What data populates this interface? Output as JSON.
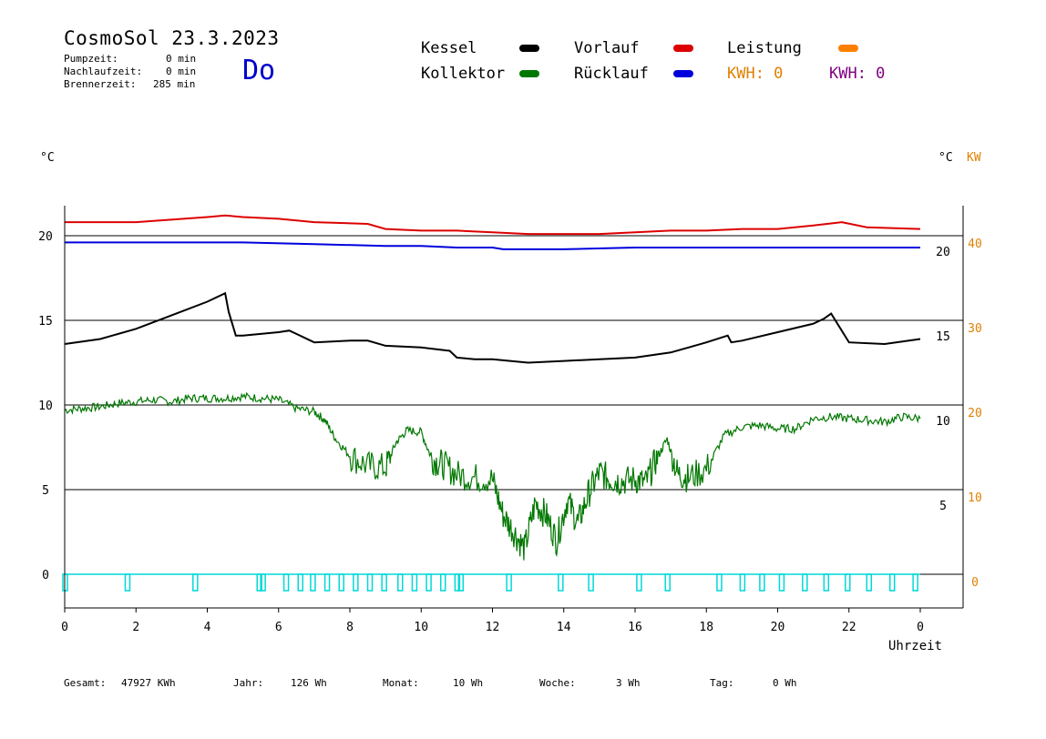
{
  "header": {
    "title": "CosmoSol 23.3.2023",
    "day": "Do",
    "stats": [
      {
        "label": "Pumpzeit:",
        "value": "0 min"
      },
      {
        "label": "Nachlaufzeit:",
        "value": "0 min"
      },
      {
        "label": "Brennerzeit:",
        "value": "285 min"
      }
    ]
  },
  "legend": {
    "kessel": "Kessel",
    "vorlauf": "Vorlauf",
    "leistung": "Leistung",
    "kollektor": "Kollektor",
    "ruecklauf": "Rücklauf",
    "kwh_orange": "KWH: 0",
    "kwh_purple": "KWH: 0"
  },
  "axis_units": {
    "left": "°C",
    "right_c": "°C",
    "right_kw": "KW"
  },
  "footer": {
    "gesamt": {
      "label": "Gesamt:",
      "value": "47927 KWh"
    },
    "jahr": {
      "label": "Jahr:",
      "value": "126 Wh"
    },
    "monat": {
      "label": "Monat:",
      "value": "10 Wh"
    },
    "woche": {
      "label": "Woche:",
      "value": "3 Wh"
    },
    "tag": {
      "label": "Tag:",
      "value": "0 Wh"
    }
  },
  "colors": {
    "kessel": "#000000",
    "vorlauf": "#dd0000",
    "ruecklauf": "#0000dd",
    "kollektor": "#007700",
    "leistung": "#ff8000",
    "pump": "#00d8d8",
    "kw_axis": "#e08000",
    "kwh_purple": "#800080",
    "day": "#0000cc"
  },
  "chart_data": {
    "type": "line",
    "xlabel": "Uhrzeit",
    "x_ticks": [
      "0",
      "2",
      "4",
      "6",
      "8",
      "10",
      "12",
      "14",
      "16",
      "18",
      "20",
      "22",
      "0"
    ],
    "xlim": [
      0,
      24
    ],
    "left_ticks": [
      "0",
      "5",
      "10",
      "15",
      "20"
    ],
    "right_c_ticks": [
      "5",
      "10",
      "15",
      "20"
    ],
    "right_kw_ticks": [
      "0",
      "10",
      "20",
      "30",
      "40"
    ],
    "ylim": [
      -1.5,
      22.3
    ],
    "series": [
      {
        "name": "Vorlauf",
        "x": [
          0,
          2,
          4,
          4.5,
          5,
          6,
          7,
          8.5,
          9,
          10,
          11,
          12,
          13,
          14,
          15,
          16,
          17,
          18,
          19,
          20,
          21,
          21.8,
          22.5,
          24
        ],
        "values": [
          20.8,
          20.8,
          21.1,
          21.2,
          21.1,
          21.0,
          20.8,
          20.7,
          20.4,
          20.3,
          20.3,
          20.2,
          20.1,
          20.1,
          20.1,
          20.2,
          20.3,
          20.3,
          20.4,
          20.4,
          20.6,
          20.8,
          20.5,
          20.4
        ]
      },
      {
        "name": "Rücklauf",
        "x": [
          0,
          2,
          5,
          7,
          9,
          10,
          11,
          12,
          12.3,
          14,
          16,
          18,
          20,
          22,
          24
        ],
        "values": [
          19.6,
          19.6,
          19.6,
          19.5,
          19.4,
          19.4,
          19.3,
          19.3,
          19.2,
          19.2,
          19.3,
          19.3,
          19.3,
          19.3,
          19.3
        ]
      },
      {
        "name": "Kessel",
        "x": [
          0,
          1,
          2,
          3,
          4,
          4.5,
          4.6,
          4.8,
          5,
          6,
          6.3,
          6.5,
          7,
          8,
          8.5,
          9,
          10,
          10.8,
          11,
          11.5,
          12,
          12.5,
          13,
          14,
          15,
          16,
          17,
          17.5,
          18,
          18.6,
          18.7,
          19,
          20,
          21,
          21.3,
          21.5,
          22,
          23,
          24
        ],
        "values": [
          13.6,
          13.9,
          14.5,
          15.3,
          16.1,
          16.6,
          15.5,
          14.1,
          14.1,
          14.3,
          14.4,
          14.2,
          13.7,
          13.8,
          13.8,
          13.5,
          13.4,
          13.2,
          12.8,
          12.7,
          12.7,
          12.6,
          12.5,
          12.6,
          12.7,
          12.8,
          13.1,
          13.4,
          13.7,
          14.1,
          13.7,
          13.8,
          14.3,
          14.8,
          15.1,
          15.4,
          13.7,
          13.6,
          13.9
        ]
      },
      {
        "name": "Kollektor",
        "x": [
          0,
          0.5,
          1,
          1.5,
          2,
          2.5,
          3,
          3.5,
          4,
          4.5,
          5,
          5.5,
          6,
          6.5,
          7,
          7.3,
          7.6,
          8,
          8.5,
          9,
          9.3,
          9.6,
          10,
          10.3,
          10.6,
          11,
          11.5,
          12,
          12.3,
          12.6,
          12.9,
          13.2,
          13.5,
          13.8,
          14.1,
          14.4,
          14.7,
          15,
          15.3,
          15.6,
          16,
          16.3,
          16.6,
          16.9,
          17.2,
          17.5,
          18,
          18.5,
          19,
          19.5,
          20,
          20.5,
          21,
          21.5,
          22,
          22.5,
          23,
          23.5,
          24
        ],
        "values": [
          9.7,
          9.8,
          9.9,
          10.1,
          10.2,
          10.3,
          10.2,
          10.4,
          10.4,
          10.4,
          10.5,
          10.4,
          10.3,
          9.8,
          9.6,
          9.1,
          8.0,
          7.0,
          6.4,
          6.3,
          7.8,
          8.5,
          8.4,
          6.8,
          6.5,
          5.9,
          5.7,
          5.6,
          3.5,
          2.5,
          1.5,
          4.2,
          3.5,
          2.0,
          4.4,
          3.0,
          4.8,
          6.0,
          5.6,
          5.5,
          5.6,
          5.4,
          6.8,
          8.0,
          5.9,
          5.7,
          6.2,
          8.2,
          8.7,
          8.8,
          8.6,
          8.6,
          9.2,
          9.3,
          9.2,
          9.1,
          9.0,
          9.3,
          9.2
        ]
      }
    ]
  }
}
